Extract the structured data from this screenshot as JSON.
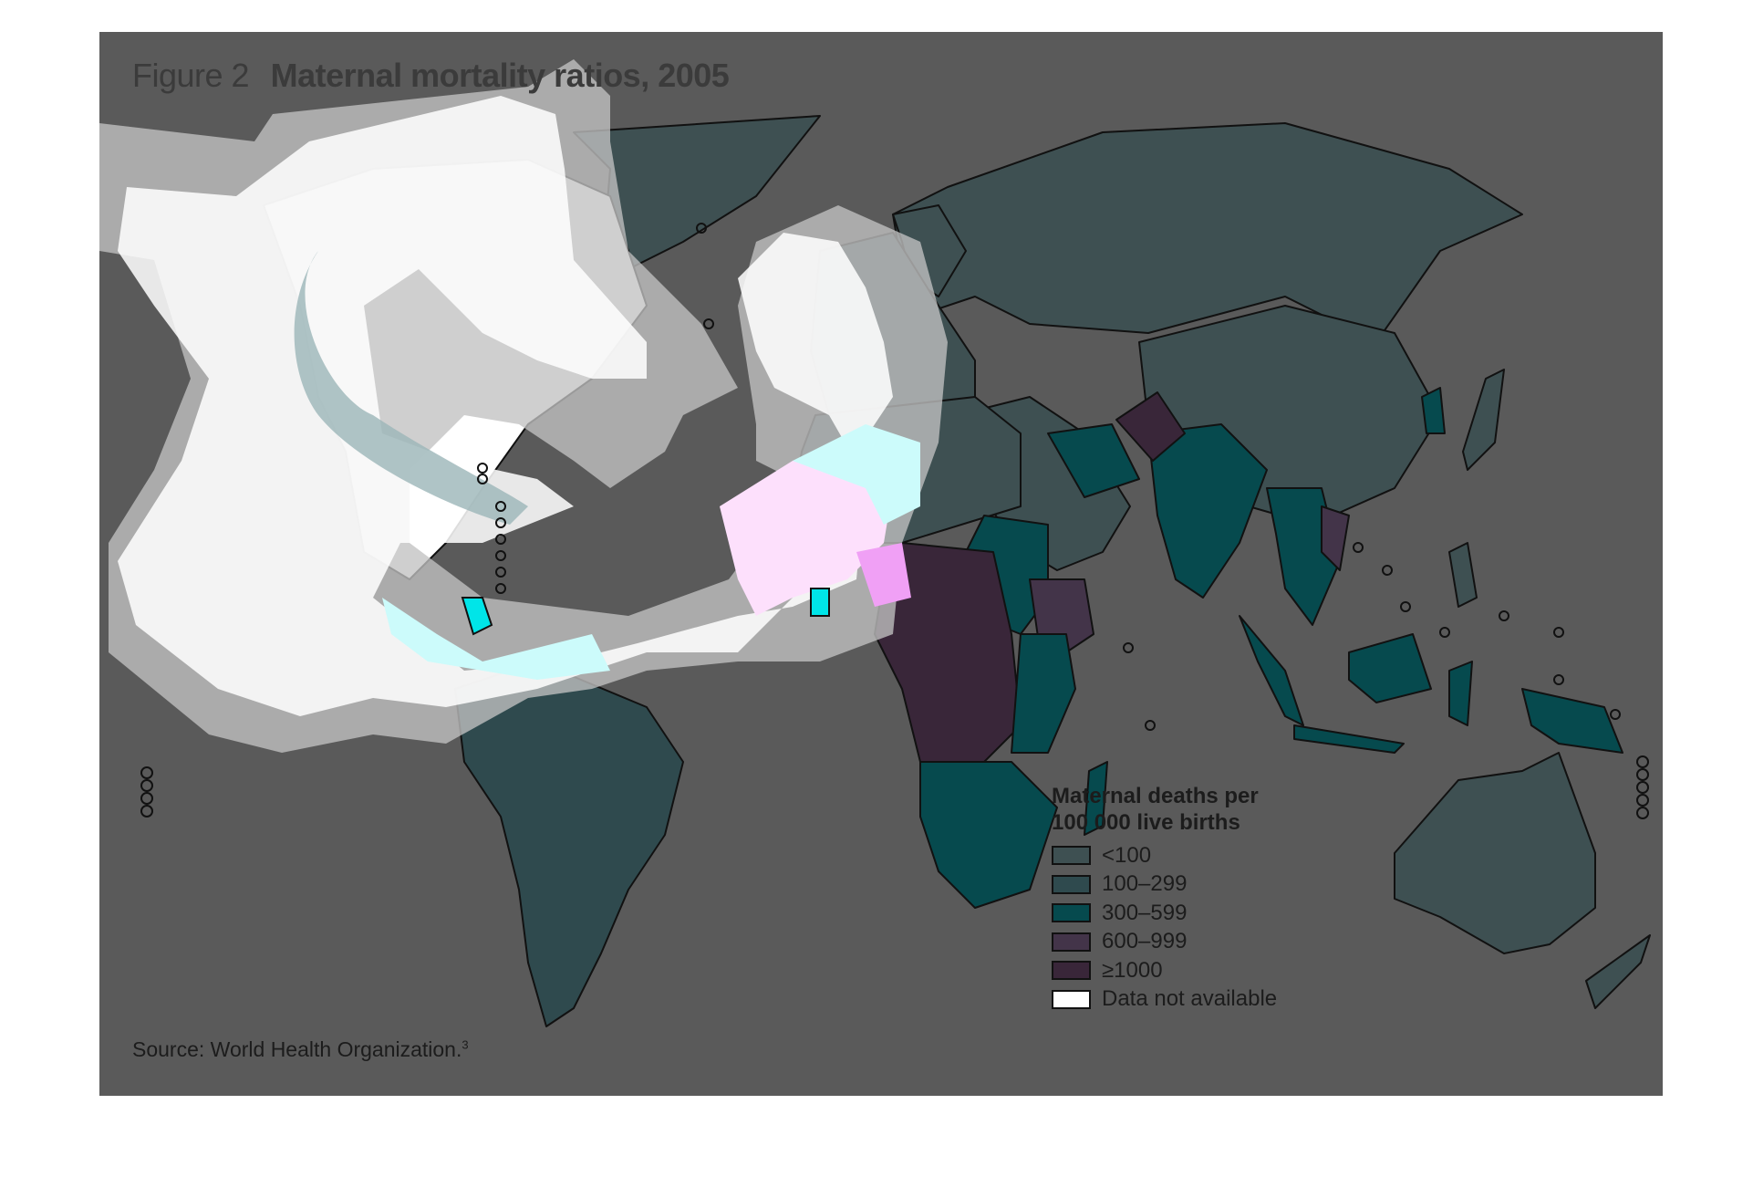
{
  "figure": {
    "label": "Figure 2",
    "title": "Maternal mortality ratios, 2005"
  },
  "legend": {
    "title": "Maternal deaths per 100 000 live births",
    "items": [
      {
        "label": "<100",
        "color": "#3e5052"
      },
      {
        "label": "100–299",
        "color": "#2f4a4e"
      },
      {
        "label": "300–599",
        "color": "#064a4e"
      },
      {
        "label": "600–999",
        "color": "#433449"
      },
      {
        "label": "≥1000",
        "color": "#392639"
      },
      {
        "label": "Data not available",
        "color": "#ffffff"
      }
    ]
  },
  "source": {
    "text": "Source: World Health Organization.",
    "footnote": "3"
  },
  "colors": {
    "background": "#5a5a5a",
    "land_lt100": "#3e5052",
    "land_100_299": "#2f4a4e",
    "land_300_599": "#064a4e",
    "land_600_999": "#433449",
    "land_ge1000": "#392639",
    "no_data": "#ffffff",
    "highlight_cyan": "#ccfbfb",
    "highlight_pink": "#fde0fc",
    "highlight_magenta": "#f0a0f5",
    "highlight_bright_cyan": "#00e5e8",
    "halo_grey": "#c2c2c2"
  }
}
